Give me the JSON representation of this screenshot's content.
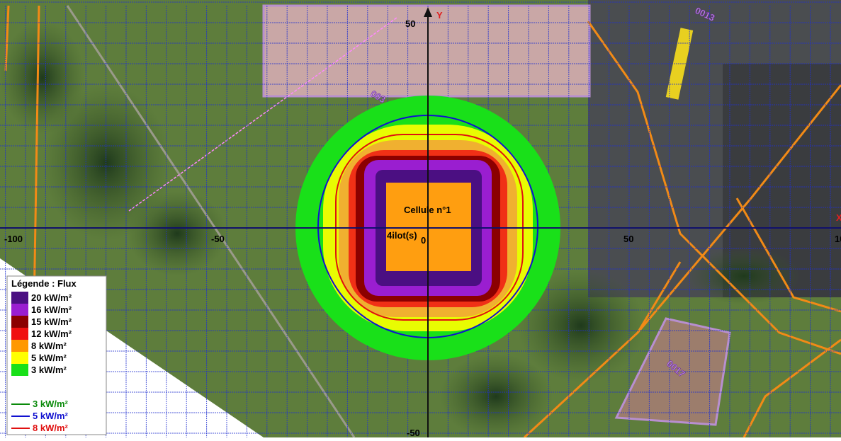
{
  "axes": {
    "x_labels": [
      "-100",
      "-50",
      "0",
      "50",
      "10"
    ],
    "y_labels": [
      "50",
      "-50"
    ],
    "y_name": "Y",
    "x_name": "X"
  },
  "annotations": {
    "cell": "Cellule n°1",
    "islands": "4ilot(s)"
  },
  "parcels": [
    "0013",
    "0017",
    "003"
  ],
  "legend": {
    "title": "Légende : Flux",
    "areas": [
      {
        "label": "20 kW/m²",
        "color": "#4b0f82"
      },
      {
        "label": "16 kW/m²",
        "color": "#9a1ed0"
      },
      {
        "label": "15 kW/m²",
        "color": "#8b0000"
      },
      {
        "label": "12 kW/m²",
        "color": "#f01010"
      },
      {
        "label": "8 kW/m²",
        "color": "#ff9800"
      },
      {
        "label": "5 kW/m²",
        "color": "#ffff00"
      },
      {
        "label": "3 kW/m²",
        "color": "#19e019"
      }
    ],
    "lines": [
      {
        "label": "3 kW/m²",
        "color": "#0a8a0a"
      },
      {
        "label": "5 kW/m²",
        "color": "#1010d0"
      },
      {
        "label": "8 kW/m²",
        "color": "#e01010"
      }
    ]
  }
}
